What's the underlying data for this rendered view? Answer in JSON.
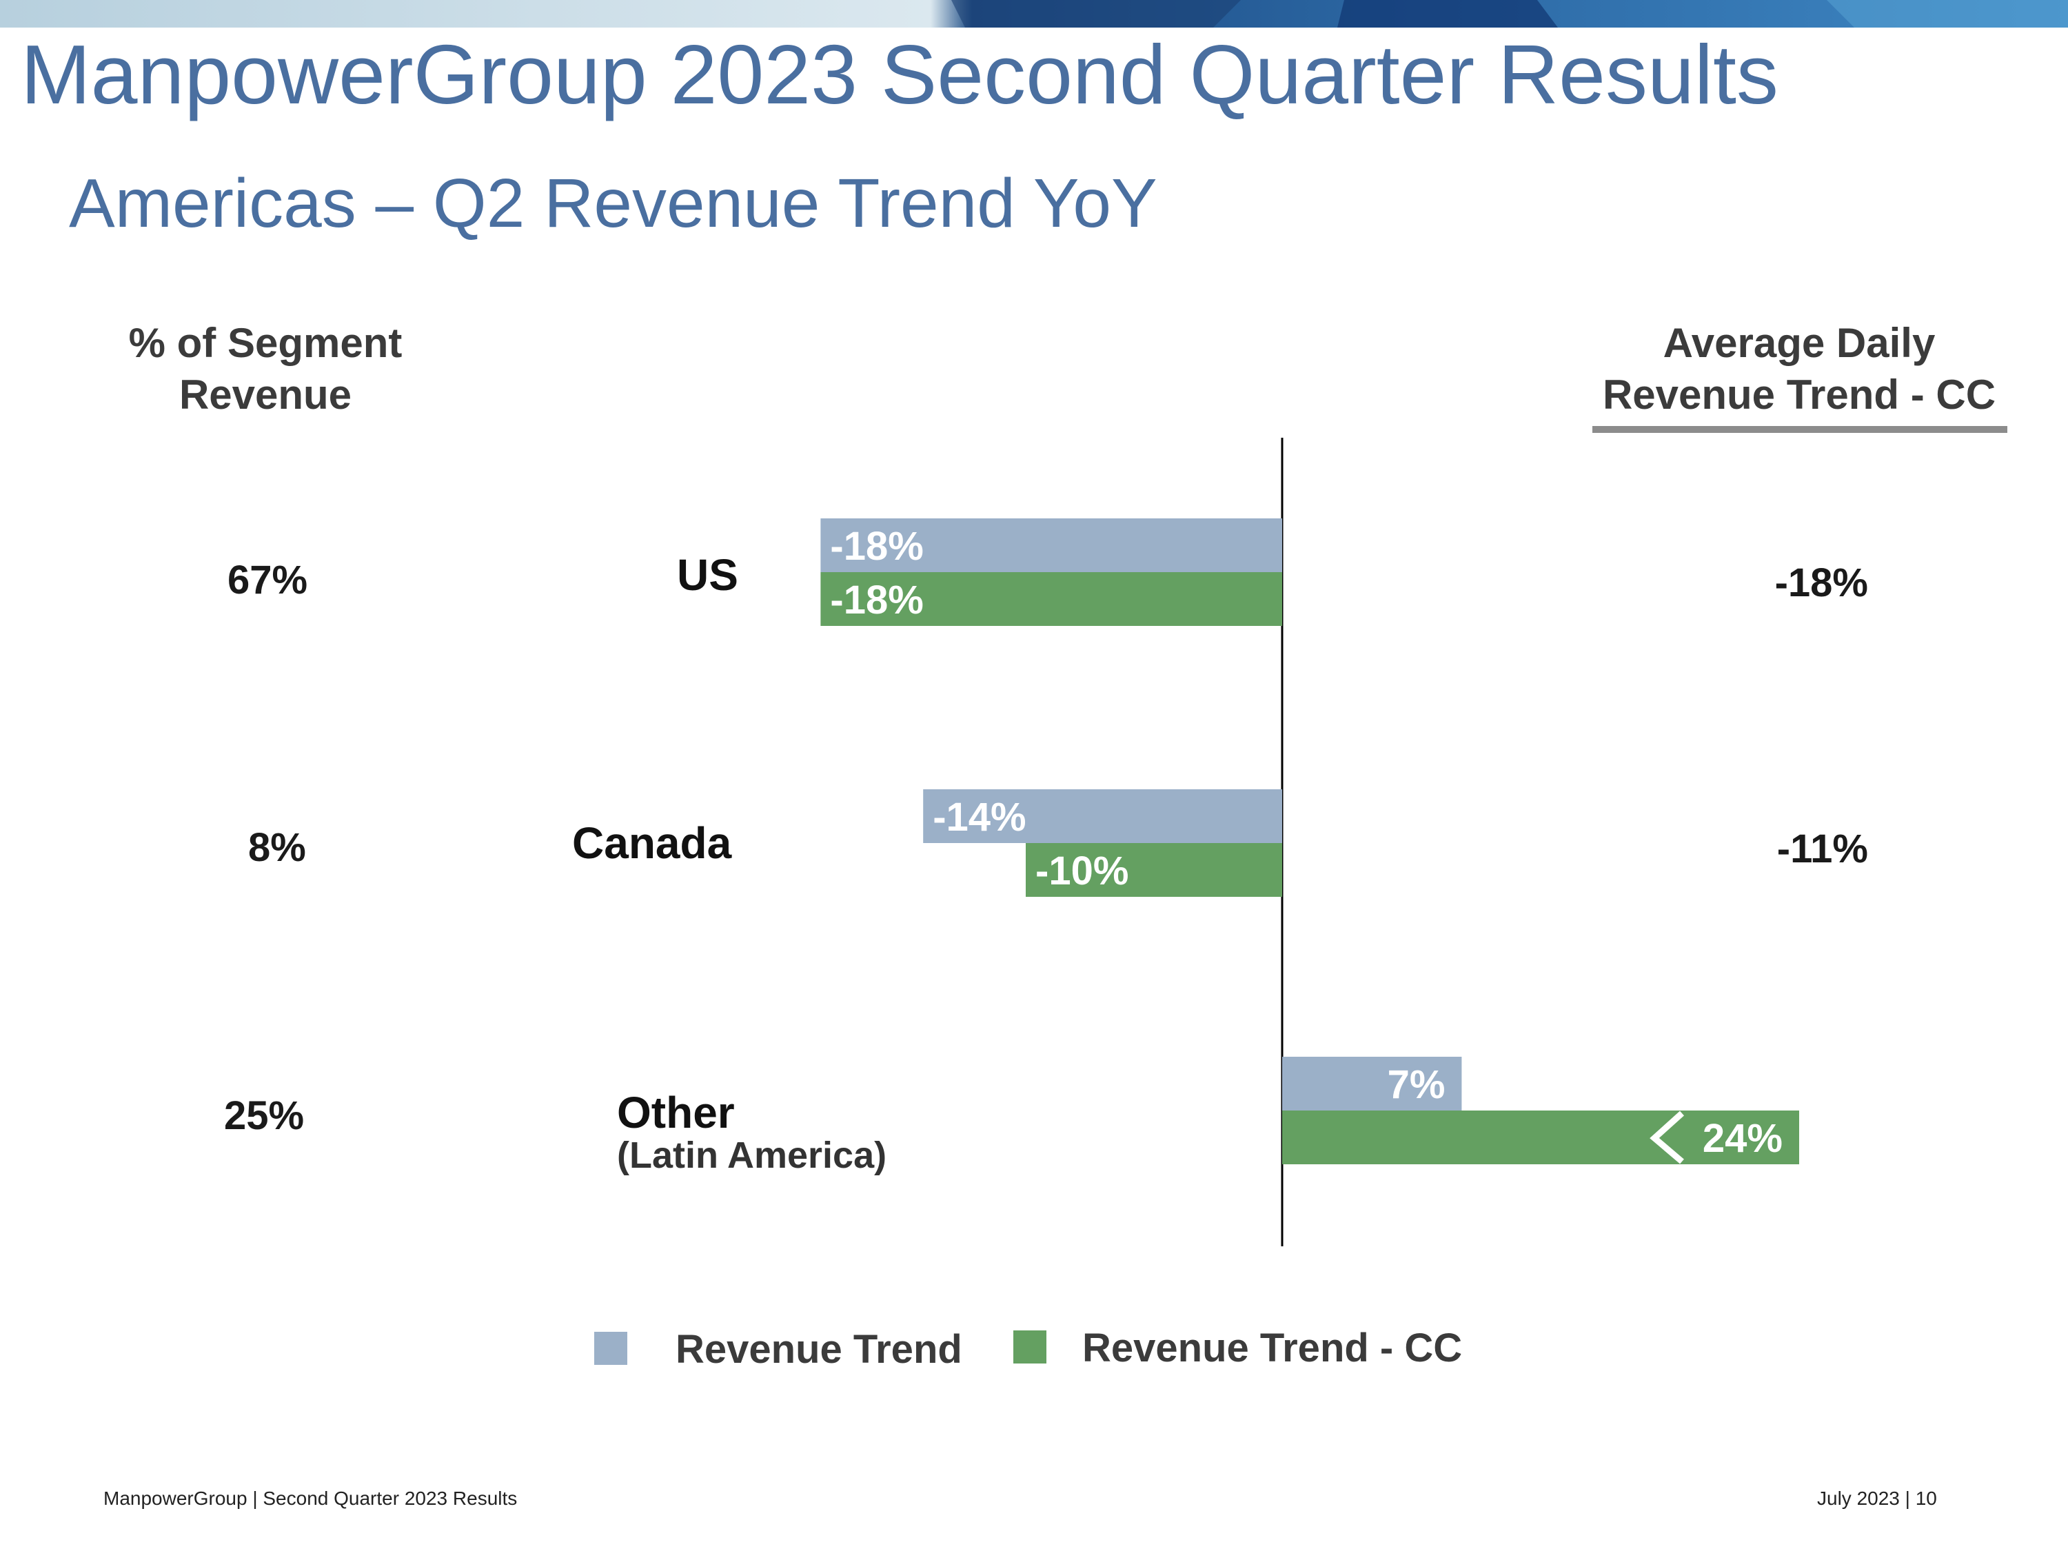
{
  "slide": {
    "title": "ManpowerGroup 2023 Second Quarter Results",
    "subtitle": "Americas – Q2 Revenue Trend YoY",
    "footer_left": "ManpowerGroup  |  Second Quarter 2023 Results",
    "footer_right": "July 2023   |   10"
  },
  "headers": {
    "left_line1": "% of Segment",
    "left_line2": "Revenue",
    "right_line1": "Average Daily",
    "right_line2": "Revenue Trend - CC"
  },
  "rows": [
    {
      "name": "US",
      "sub": "",
      "segment_pct": "67%",
      "avg_daily_cc": "-18%"
    },
    {
      "name": "Canada",
      "sub": "",
      "segment_pct": "8%",
      "avg_daily_cc": "-11%"
    },
    {
      "name": "Other",
      "sub": "(Latin America)",
      "segment_pct": "25%",
      "avg_daily_cc": ""
    }
  ],
  "legend": {
    "revenue_trend": "Revenue Trend",
    "revenue_trend_cc": "Revenue Trend - CC"
  },
  "colors": {
    "revenue_trend": "#9bb0c8",
    "revenue_trend_cc": "#64a061",
    "title": "#4a6fa0"
  },
  "chart_data": {
    "type": "bar",
    "orientation": "horizontal",
    "categories": [
      "US",
      "Canada",
      "Other (Latin America)"
    ],
    "series": [
      {
        "name": "Revenue Trend",
        "values": [
          -18,
          -14,
          7
        ],
        "labels": [
          "-18%",
          "-14%",
          "7%"
        ]
      },
      {
        "name": "Revenue Trend - CC",
        "values": [
          -18,
          -10,
          24
        ],
        "labels": [
          "-18%",
          "-10%",
          "24%"
        ]
      }
    ],
    "axis_break_on": "Revenue Trend - CC / Other (Latin America)",
    "units": "%"
  }
}
